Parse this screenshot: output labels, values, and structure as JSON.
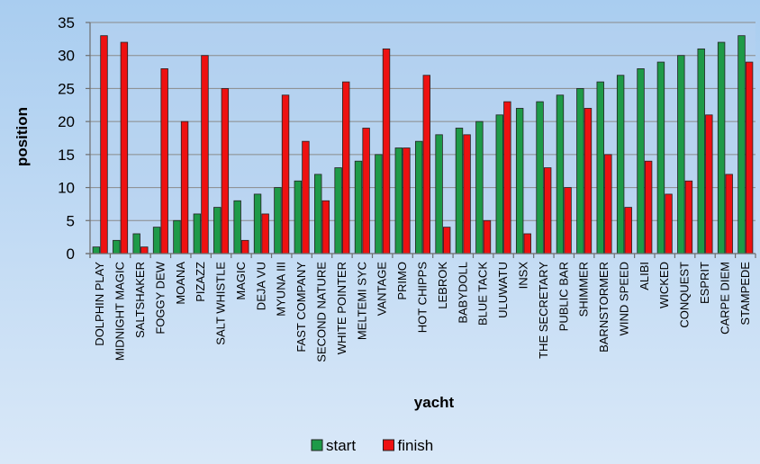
{
  "chart_data": {
    "type": "bar",
    "title": "",
    "xlabel": "yacht",
    "ylabel": "position",
    "ylim": [
      0,
      35
    ],
    "yticks": [
      0,
      5,
      10,
      15,
      20,
      25,
      30,
      35
    ],
    "grid": true,
    "legend_position": "bottom",
    "categories": [
      "DOLPHIN PLAY",
      "MIDNIGHT MAGIC",
      "SALTSHAKER",
      "FOGGY DEW",
      "MOANA",
      "PIZAZZ",
      "SALT WHISTLE",
      "MAGIC",
      "DEJA VU",
      "MYUNA III",
      "FAST COMPANY",
      "SECOND NATURE",
      "WHITE POINTER",
      "MELTEMI SYC",
      "VANTAGE",
      "PRIMO",
      "HOT CHIPPS",
      "LEBROK",
      "BABYDOLL",
      "BLUE TACK",
      "ULUWATU",
      "INSX",
      "THE SECRETARY",
      "PUBLIC BAR",
      "SHIMMER",
      "BARNSTORMER",
      "WIND SPEED",
      "ALIBI",
      "WICKED",
      "CONQUEST",
      "ESPRIT",
      "CARPE DIEM",
      "STAMPEDE"
    ],
    "series": [
      {
        "name": "start",
        "color": "#1e9a48",
        "values": [
          1,
          2,
          3,
          4,
          5,
          6,
          7,
          8,
          9,
          10,
          11,
          12,
          13,
          14,
          15,
          16,
          17,
          18,
          19,
          20,
          21,
          22,
          23,
          24,
          25,
          26,
          27,
          28,
          29,
          30,
          31,
          32,
          33
        ]
      },
      {
        "name": "finish",
        "color": "#ee1111",
        "values": [
          33,
          32,
          1,
          28,
          20,
          30,
          25,
          2,
          6,
          24,
          17,
          8,
          26,
          19,
          31,
          16,
          27,
          4,
          18,
          5,
          23,
          3,
          13,
          10,
          22,
          15,
          7,
          14,
          9,
          11,
          21,
          12,
          29
        ]
      }
    ]
  }
}
